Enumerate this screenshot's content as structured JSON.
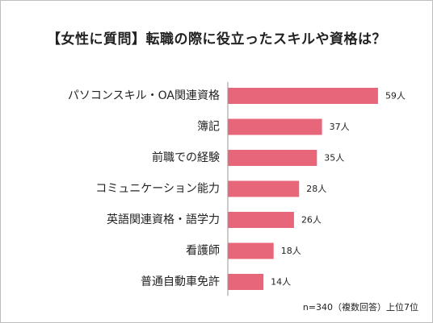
{
  "chart_data": {
    "type": "bar",
    "orientation": "horizontal",
    "title": "【女性に質問】転職の際に役立ったスキルや資格は？",
    "categories": [
      "パソコンスキル・OA関連資格",
      "簿記",
      "前職での経験",
      "コミュニケーション能力",
      "英語関連資格・語学力",
      "看護師",
      "普通自動車免許"
    ],
    "values": [
      59,
      37,
      35,
      28,
      26,
      18,
      14
    ],
    "value_labels": [
      "59人",
      "37人",
      "35人",
      "28人",
      "26人",
      "18人",
      "14人"
    ],
    "xlim": [
      0,
      66
    ],
    "grid": false,
    "legend": "none",
    "bar_color": "#e8667a",
    "axis_color": "#999999"
  },
  "footnote": "n=340（複数回答）上位7位"
}
